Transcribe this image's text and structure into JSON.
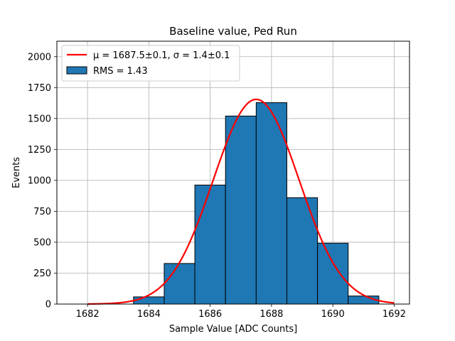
{
  "chart_data": {
    "type": "bar",
    "title": "Baseline value, Ped Run",
    "xlabel": "Sample Value [ADC Counts]",
    "ylabel": "Events",
    "xlim": [
      1681.0,
      1692.5
    ],
    "ylim": [
      0,
      2125
    ],
    "grid": true,
    "legend_position": "top-left",
    "x_ticks": [
      1682,
      1684,
      1686,
      1688,
      1690,
      1692
    ],
    "y_ticks": [
      0,
      250,
      500,
      750,
      1000,
      1250,
      1500,
      1750,
      2000
    ],
    "histogram": {
      "label": "RMS = 1.43",
      "color": "#1f77b4",
      "bins": [
        {
          "left": 1683.5,
          "right": 1684.5,
          "count": 58
        },
        {
          "left": 1684.5,
          "right": 1685.5,
          "count": 328
        },
        {
          "left": 1685.5,
          "right": 1686.5,
          "count": 962
        },
        {
          "left": 1686.5,
          "right": 1687.5,
          "count": 1520
        },
        {
          "left": 1687.5,
          "right": 1688.5,
          "count": 1628
        },
        {
          "left": 1688.5,
          "right": 1689.5,
          "count": 860
        },
        {
          "left": 1689.5,
          "right": 1690.5,
          "count": 492
        },
        {
          "left": 1690.5,
          "right": 1691.5,
          "count": 65
        }
      ]
    },
    "fit": {
      "label": "μ = 1687.5±0.1, σ = 1.4±0.1",
      "color": "#ff0000",
      "mu": 1687.5,
      "sigma": 1.4,
      "amplitude": 1655,
      "x_range": [
        1682,
        1692
      ]
    }
  }
}
